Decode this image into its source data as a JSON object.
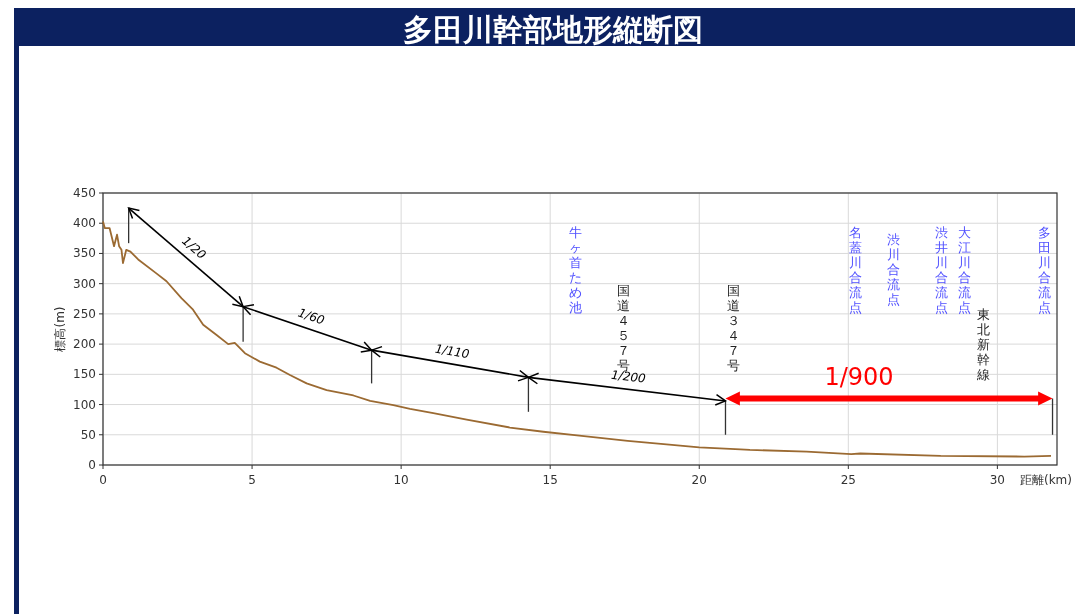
{
  "chart_data": {
    "type": "line",
    "title": "多田川幹部地形縦断図",
    "xlabel": "距離(km)",
    "ylabel": "標高(m)",
    "xlim": [
      0,
      32
    ],
    "xticks": [
      0,
      5,
      10,
      15,
      20,
      25,
      30
    ],
    "ylim": [
      0,
      450
    ],
    "yticks": [
      0,
      50,
      100,
      150,
      200,
      250,
      300,
      350,
      400,
      450
    ],
    "grid": true,
    "marker": "none",
    "line_style": "solid",
    "series": [
      {
        "color": "#9b6a32",
        "x": [
          0,
          0.06,
          0.22,
          0.37,
          0.47,
          0.54,
          0.62,
          0.67,
          0.78,
          0.92,
          1.18,
          1.79,
          2.13,
          2.63,
          3.02,
          3.36,
          3.81,
          4.2,
          4.42,
          4.76,
          5.26,
          5.82,
          6.27,
          6.83,
          7.5,
          8.4,
          8.96,
          9.74,
          10.3,
          11.08,
          12.2,
          13.65,
          14.77,
          15.9,
          17.6,
          18.9,
          20.0,
          21.38,
          21.7,
          23.6,
          25.1,
          25.4,
          28.1,
          30.9,
          31.8
        ],
        "values": [
          403,
          392,
          392,
          362,
          381,
          362,
          356,
          334,
          356,
          353,
          340,
          317,
          304,
          276,
          257,
          232,
          215,
          200,
          202,
          185,
          171,
          161,
          149,
          135,
          124,
          115,
          106,
          99,
          93,
          86,
          75,
          62,
          55,
          49,
          40,
          34,
          29,
          26,
          25,
          22,
          18,
          19,
          15,
          14,
          15
        ]
      }
    ],
    "annotations": [
      "1/20",
      "1/60",
      "1/110",
      "1/200",
      "1/900",
      "牛ヶ首ため池",
      "国道４５７号",
      "国道３４７号",
      "名蓋川合流点",
      "渋川合流点",
      "渋井川合流点",
      "大江川合流点",
      "東北新幹線",
      "多田川合流点"
    ]
  }
}
